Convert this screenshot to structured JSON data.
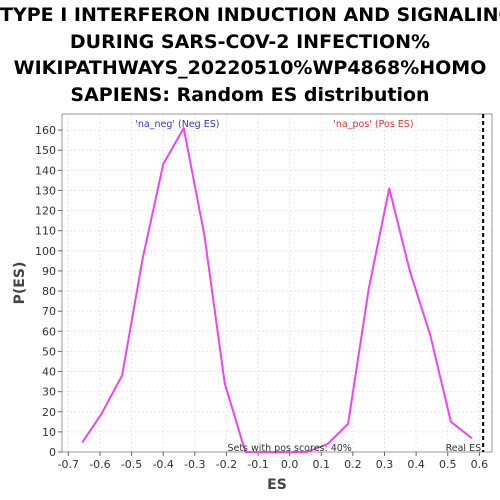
{
  "chart_data": {
    "type": "line",
    "title_lines": [
      "TYPE I INTERFERON INDUCTION AND SIGNALING",
      "DURING SARS-COV-2 INFECTION%",
      "WIKIPATHWAYS_20220510%WP4868%HOMO",
      "SAPIENS: Random ES distribution"
    ],
    "xlabel": "ES",
    "ylabel": "P(ES)",
    "xlim": [
      -0.72,
      0.64
    ],
    "ylim": [
      0,
      168
    ],
    "x_ticks": [
      "-0.7",
      "-0.6",
      "-0.5",
      "-0.4",
      "-0.3",
      "-0.2",
      "-0.1",
      "0.0",
      "0.1",
      "0.2",
      "0.3",
      "0.4",
      "0.5",
      "0.6"
    ],
    "y_ticks": [
      "0",
      "10",
      "20",
      "30",
      "40",
      "50",
      "60",
      "70",
      "80",
      "90",
      "100",
      "110",
      "120",
      "130",
      "140",
      "150",
      "160"
    ],
    "grid": true,
    "series": [
      {
        "color": "#ee44ee",
        "x": [
          -0.655,
          -0.595,
          -0.53,
          -0.465,
          -0.4,
          -0.335,
          -0.27,
          -0.205,
          -0.14,
          -0.075,
          -0.01,
          0.055,
          0.12,
          0.185,
          0.25,
          0.315,
          0.38,
          0.445,
          0.51,
          0.575
        ],
        "y": [
          5,
          19,
          38,
          96,
          143,
          161,
          108,
          34,
          0,
          0,
          0,
          0,
          4,
          14,
          81,
          131,
          90,
          58,
          15,
          7
        ]
      }
    ],
    "real_es": {
      "x": 0.612,
      "label": "Real ES",
      "color": "#000000"
    },
    "annotations": {
      "neg": {
        "text": "'na_neg' (Neg ES)",
        "color": "#3333cc"
      },
      "pos": {
        "text": "'na_pos' (Pos ES)",
        "color": "#dd3333"
      },
      "note": {
        "text": "Sets with pos scores: 40%",
        "color": "#333333"
      }
    }
  }
}
